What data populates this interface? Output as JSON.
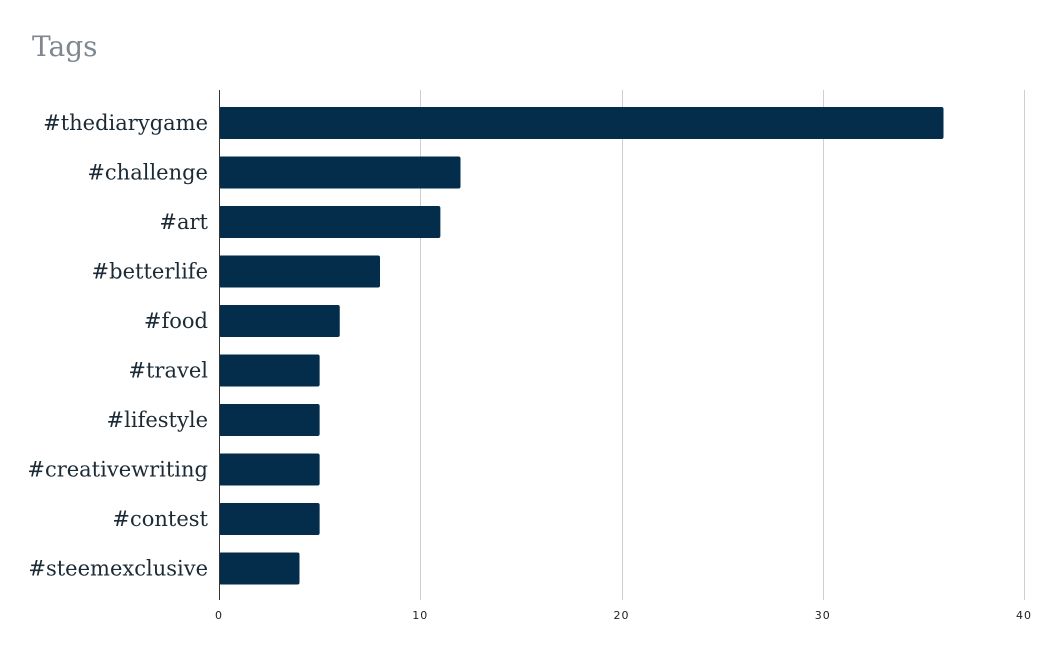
{
  "title": "Tags",
  "chart_data": {
    "type": "bar",
    "orientation": "horizontal",
    "title": "Tags",
    "categories": [
      "#thediarygame",
      "#challenge",
      "#art",
      "#betterlife",
      "#food",
      "#travel",
      "#lifestyle",
      "#creativewriting",
      "#contest",
      "#steemexclusive"
    ],
    "values": [
      36,
      12,
      11,
      8,
      6,
      5,
      5,
      5,
      5,
      4
    ],
    "xlim": [
      0,
      40
    ],
    "xticks": [
      0,
      10,
      20,
      30,
      40
    ],
    "grid": true,
    "legend": "none",
    "bar_color": "#032d4a"
  }
}
